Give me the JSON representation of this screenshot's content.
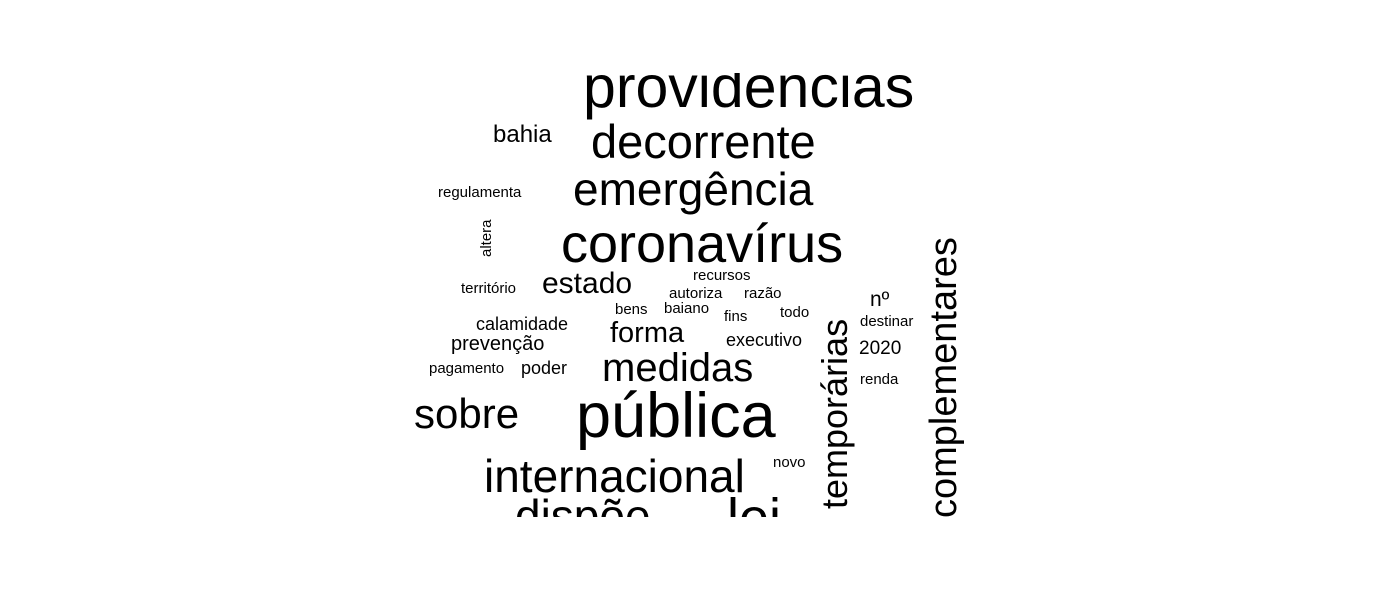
{
  "words": [
    "providências",
    "decorrente",
    "emergência",
    "coronavírus",
    "bahia",
    "regulamenta",
    "altera",
    "estado",
    "recursos",
    "território",
    "autoriza",
    "razão",
    "bens",
    "baiano",
    "nº",
    "fins",
    "todo",
    "calamidade",
    "forma",
    "destinar",
    "prevenção",
    "executivo",
    "2020",
    "pagamento",
    "poder",
    "medidas",
    "renda",
    "sobre",
    "pública",
    "temporárias",
    "complementares",
    "novo",
    "internacional",
    "dispõe",
    "lei"
  ],
  "colors": {
    "text": "#000000",
    "background": "#ffffff"
  }
}
